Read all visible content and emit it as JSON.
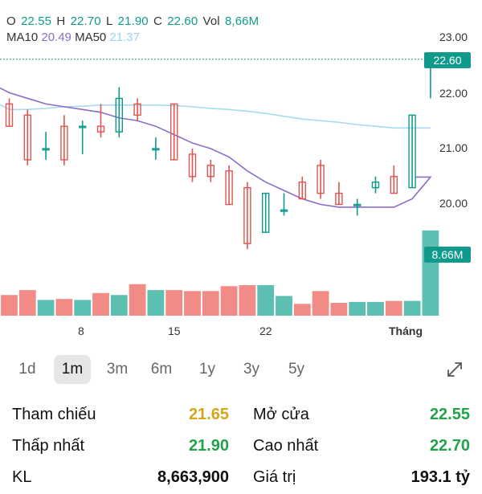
{
  "quote": {
    "open_label": "O",
    "open": "22.55",
    "high_label": "H",
    "high": "22.70",
    "low_label": "L",
    "low": "21.90",
    "close_label": "C",
    "close": "22.60",
    "vol_label": "Vol",
    "vol": "8,66M",
    "ma10_label": "MA10",
    "ma10": "20.49",
    "ma50_label": "MA50",
    "ma50": "21.37"
  },
  "price_badge": "22.60",
  "volume_badge": "8.66M",
  "colors": {
    "up": "#5dbfb1",
    "down": "#f28b86",
    "up_line": "#0f9a8c",
    "down_line": "#e0554f",
    "ma10": "#8b6dc7",
    "ma50": "#a8dbf0",
    "badge": "#0f9a8c",
    "yellow": "#d6a51b",
    "green": "#22a34a"
  },
  "chart_data": {
    "type": "candlestick",
    "y_ticks": [
      "23.00",
      "22.00",
      "21.00",
      "20.00"
    ],
    "ylim": [
      19.05,
      23.45
    ],
    "x_ticks": [
      "8",
      "15",
      "22",
      "Tháng"
    ],
    "last_price": 22.6,
    "candles": [
      {
        "o": 21.8,
        "h": 21.9,
        "l": 21.4,
        "c": 21.4
      },
      {
        "o": 21.6,
        "h": 21.7,
        "l": 20.7,
        "c": 20.8
      },
      {
        "o": 21.0,
        "h": 21.3,
        "l": 20.8,
        "c": 21.0
      },
      {
        "o": 21.4,
        "h": 21.6,
        "l": 20.7,
        "c": 20.8
      },
      {
        "o": 21.4,
        "h": 21.5,
        "l": 20.9,
        "c": 21.4
      },
      {
        "o": 21.4,
        "h": 21.8,
        "l": 21.2,
        "c": 21.3
      },
      {
        "o": 21.3,
        "h": 22.1,
        "l": 21.2,
        "c": 21.9
      },
      {
        "o": 21.8,
        "h": 21.9,
        "l": 21.5,
        "c": 21.6
      },
      {
        "o": 21.0,
        "h": 21.2,
        "l": 20.8,
        "c": 21.0
      },
      {
        "o": 21.8,
        "h": 21.8,
        "l": 20.8,
        "c": 20.8
      },
      {
        "o": 20.9,
        "h": 21.0,
        "l": 20.4,
        "c": 20.5
      },
      {
        "o": 20.7,
        "h": 20.8,
        "l": 20.4,
        "c": 20.5
      },
      {
        "o": 20.6,
        "h": 20.7,
        "l": 20.0,
        "c": 20.0
      },
      {
        "o": 20.3,
        "h": 20.4,
        "l": 19.2,
        "c": 19.3
      },
      {
        "o": 19.5,
        "h": 20.2,
        "l": 19.5,
        "c": 20.2
      },
      {
        "o": 19.9,
        "h": 20.2,
        "l": 19.8,
        "c": 19.9
      },
      {
        "o": 20.4,
        "h": 20.5,
        "l": 20.1,
        "c": 20.1
      },
      {
        "o": 20.7,
        "h": 20.8,
        "l": 20.1,
        "c": 20.2
      },
      {
        "o": 20.2,
        "h": 20.4,
        "l": 20.0,
        "c": 20.0
      },
      {
        "o": 20.0,
        "h": 20.1,
        "l": 19.8,
        "c": 20.0
      },
      {
        "o": 20.3,
        "h": 20.5,
        "l": 20.2,
        "c": 20.4
      },
      {
        "o": 20.5,
        "h": 20.7,
        "l": 20.2,
        "c": 20.2
      },
      {
        "o": 20.3,
        "h": 21.6,
        "l": 20.3,
        "c": 21.6
      },
      {
        "o": 22.6,
        "h": 22.7,
        "l": 21.9,
        "c": 22.6
      }
    ],
    "volumes_millions": [
      2.1,
      2.6,
      1.6,
      1.7,
      1.6,
      2.3,
      2.1,
      3.2,
      2.6,
      2.6,
      2.5,
      2.5,
      3.0,
      3.1,
      3.1,
      2.0,
      1.2,
      2.5,
      1.3,
      1.4,
      1.4,
      1.5,
      1.5,
      8.66
    ],
    "volume_max": 10.2,
    "ma10": [
      22.0,
      21.9,
      21.8,
      21.75,
      21.7,
      21.65,
      21.55,
      21.5,
      21.4,
      21.25,
      21.1,
      21.0,
      20.85,
      20.6,
      20.4,
      20.25,
      20.1,
      20.0,
      19.95,
      19.95,
      19.95,
      19.95,
      20.1,
      20.49
    ],
    "ma50": [
      21.7,
      21.7,
      21.72,
      21.75,
      21.76,
      21.78,
      21.78,
      21.78,
      21.78,
      21.77,
      21.75,
      21.72,
      21.7,
      21.67,
      21.63,
      21.58,
      21.53,
      21.5,
      21.47,
      21.43,
      21.4,
      21.37,
      21.37,
      21.37
    ]
  },
  "periods": [
    "1d",
    "1m",
    "3m",
    "6m",
    "1y",
    "3y",
    "5y"
  ],
  "active_period": "1m",
  "stats": [
    {
      "label": "Tham chiếu",
      "value": "21.65",
      "color": "yellow"
    },
    {
      "label": "Mở cửa",
      "value": "22.55",
      "color": "green"
    },
    {
      "label": "Thấp nhất",
      "value": "21.90",
      "color": "green"
    },
    {
      "label": "Cao nhất",
      "value": "22.70",
      "color": "green"
    },
    {
      "label": "KL",
      "value": "8,663,900",
      "color": "black"
    },
    {
      "label": "Giá trị",
      "value": "193.1 tỷ",
      "color": "black"
    }
  ]
}
